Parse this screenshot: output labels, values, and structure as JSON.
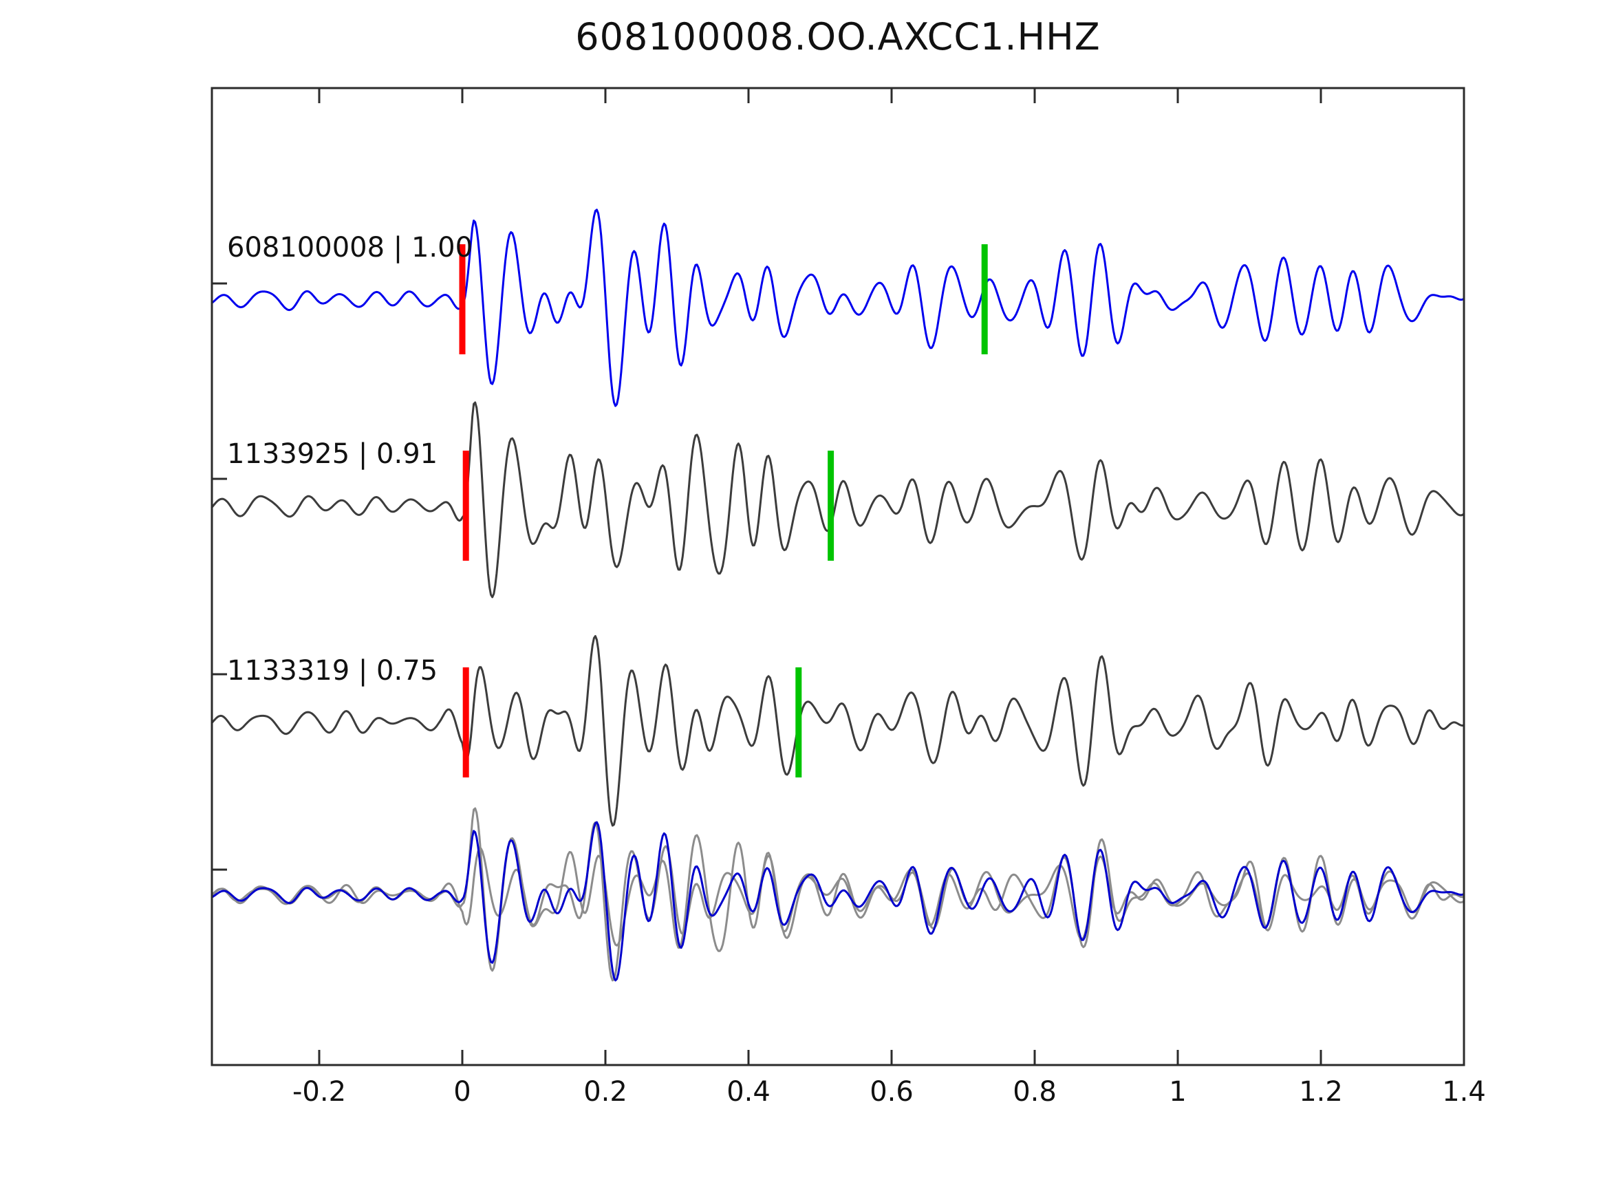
{
  "title": "608100008.OO.AXCC1.HHZ",
  "chart_data": {
    "type": "line",
    "title": "608100008.OO.AXCC1.HHZ",
    "xlabel": "",
    "ylabel": "",
    "xlim": [
      -0.35,
      1.4
    ],
    "x_ticks": [
      -0.2,
      0,
      0.2,
      0.4,
      0.6,
      0.8,
      1,
      1.2,
      1.4
    ],
    "x_tick_labels": [
      "-0.2",
      "0",
      "0.2",
      "0.4",
      "0.6",
      "0.8",
      "1",
      "1.2",
      "1.4"
    ],
    "grid": false,
    "legend": "none",
    "axis_color": "#2b2b2b",
    "marker_colors": {
      "pick_red": "#ff0000",
      "pick_green": "#00c400"
    },
    "trace_colors": {
      "template_blue": "#0000ee",
      "detection_gray": "#3c3c3c",
      "overlay_gray": "#8c8c8c",
      "overlay_blue": "#0000cc"
    },
    "traces": [
      {
        "id": "608100008",
        "label": "608100008 | 1.00",
        "correlation": 1.0,
        "style": "template_blue",
        "red_pick_t": 0.0,
        "green_pick_t": 0.73,
        "seed": 101,
        "noise_mix": 0.0
      },
      {
        "id": "1133925",
        "label": "1133925 | 0.91",
        "correlation": 0.91,
        "style": "detection_gray",
        "red_pick_t": 0.005,
        "green_pick_t": 0.515,
        "seed": 202,
        "noise_mix": 0.38
      },
      {
        "id": "1133319",
        "label": "1133319 | 0.75",
        "correlation": 0.75,
        "style": "detection_gray",
        "red_pick_t": 0.005,
        "green_pick_t": 0.47,
        "seed": 303,
        "noise_mix": 0.55
      }
    ],
    "overlay": {
      "includes": [
        "1133925",
        "1133319",
        "608100008"
      ],
      "description": "aligned overlay: detections in gray, template in blue"
    },
    "synthesis": {
      "dt": 0.002,
      "components": 36,
      "f_lo": 7,
      "f_hi": 30,
      "f_peak": 17,
      "base_seed": 7,
      "envelope": [
        [
          -0.35,
          0.1
        ],
        [
          -0.03,
          0.1
        ],
        [
          0.0,
          0.28
        ],
        [
          0.015,
          1.0
        ],
        [
          0.05,
          0.92
        ],
        [
          0.1,
          0.8
        ],
        [
          0.18,
          0.97
        ],
        [
          0.28,
          0.9
        ],
        [
          0.38,
          0.82
        ],
        [
          0.45,
          0.6
        ],
        [
          0.55,
          0.42
        ],
        [
          0.65,
          0.4
        ],
        [
          0.75,
          0.42
        ],
        [
          0.82,
          0.55
        ],
        [
          0.88,
          0.62
        ],
        [
          0.95,
          0.44
        ],
        [
          1.05,
          0.36
        ],
        [
          1.15,
          0.42
        ],
        [
          1.25,
          0.36
        ],
        [
          1.4,
          0.4
        ]
      ]
    }
  }
}
